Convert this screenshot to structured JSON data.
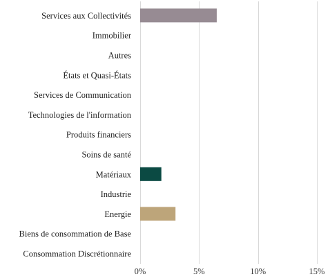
{
  "chart_data": {
    "type": "bar",
    "orientation": "horizontal",
    "title": "",
    "xlabel": "",
    "ylabel": "",
    "categories": [
      "Services aux Collectivités",
      "Immobilier",
      "Autres",
      "États et Quasi-États",
      "Services de Communication",
      "Technologies de l'information",
      "Produits financiers",
      "Soins de santé",
      "Matériaux",
      "Industrie",
      "Energie",
      "Biens de consommation de Base",
      "Consommation Discrétionnaire"
    ],
    "values": [
      6.5,
      0,
      0,
      0,
      0,
      0,
      0,
      0,
      1.8,
      0,
      3.0,
      0,
      0
    ],
    "bar_colors": [
      "#978b93",
      "#978b93",
      "#978b93",
      "#978b93",
      "#978b93",
      "#978b93",
      "#978b93",
      "#978b93",
      "#0b4a43",
      "#978b93",
      "#bda57a",
      "#978b93",
      "#978b93"
    ],
    "xlim": [
      0,
      15
    ],
    "xticks": [
      0,
      5,
      10,
      15
    ],
    "xtick_labels": [
      "0%",
      "5%",
      "10%",
      "15%"
    ],
    "grid": "vertical"
  }
}
